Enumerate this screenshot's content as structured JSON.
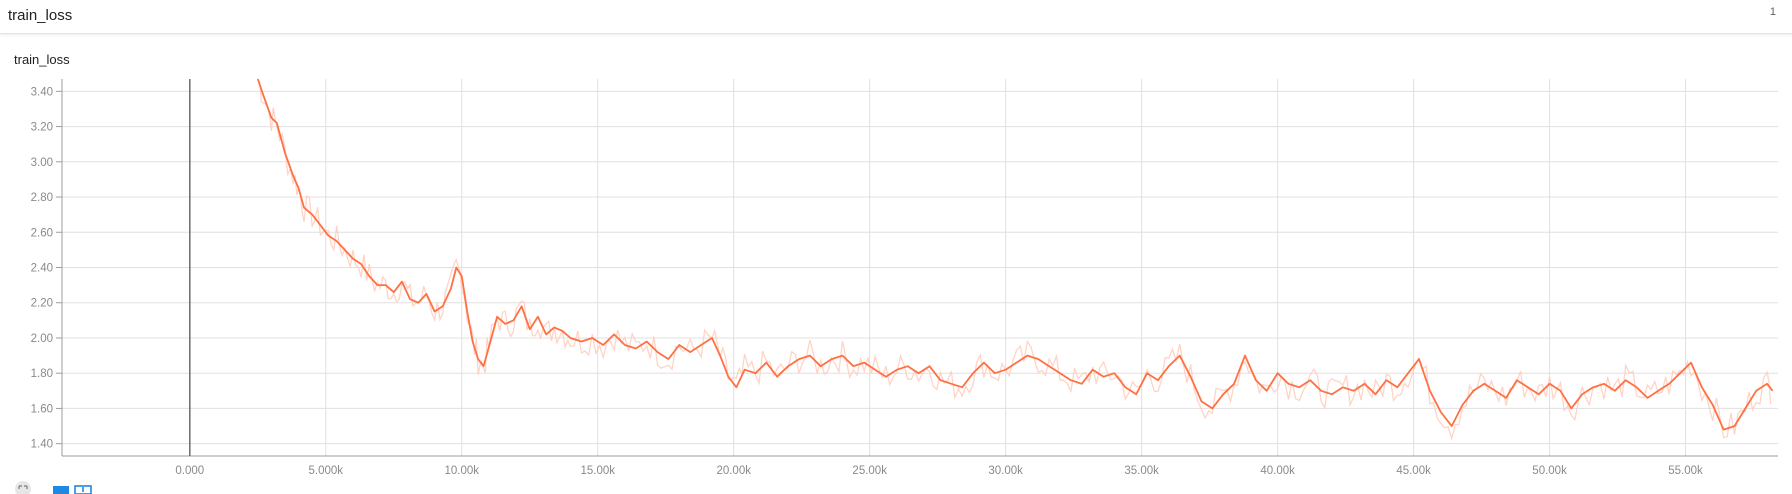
{
  "card": {
    "title": "train_loss",
    "count": "1"
  },
  "chart_data": {
    "type": "line",
    "title": "train_loss",
    "xlabel": "",
    "ylabel": "",
    "xlim": [
      -4700,
      58400
    ],
    "ylim": [
      1.33,
      3.47
    ],
    "grid": true,
    "x_ticks": [
      0,
      5000,
      10000,
      15000,
      20000,
      25000,
      30000,
      35000,
      40000,
      45000,
      50000,
      55000
    ],
    "x_tick_labels": [
      "0.000",
      "5.000k",
      "10.00k",
      "15.00k",
      "20.00k",
      "25.00k",
      "30.00k",
      "35.00k",
      "40.00k",
      "45.00k",
      "50.00k",
      "55.00k"
    ],
    "y_ticks": [
      1.4,
      1.6,
      1.8,
      2.0,
      2.2,
      2.4,
      2.6,
      2.8,
      3.0,
      3.2,
      3.4
    ],
    "y_tick_labels": [
      "1.40",
      "1.60",
      "1.80",
      "2.00",
      "2.20",
      "2.40",
      "2.60",
      "2.80",
      "3.00",
      "3.20",
      "3.40"
    ],
    "colors": {
      "smoothed": "#ff7043",
      "raw": "#ffccbc",
      "grid": "#e0e0e0",
      "axis": "#9e9e9e"
    },
    "series": [
      {
        "x": [
          2500,
          2700,
          3000,
          3200,
          3500,
          3800,
          4000,
          4200,
          4500,
          4800,
          5100,
          5400,
          5700,
          6000,
          6300,
          6600,
          6900,
          7200,
          7500,
          7800,
          8100,
          8400,
          8700,
          9000,
          9300,
          9600,
          9800,
          10000,
          10200,
          10400,
          10600,
          10800,
          11000,
          11300,
          11600,
          11900,
          12200,
          12500,
          12800,
          13100,
          13400,
          13700,
          14000,
          14400,
          14800,
          15200,
          15600,
          16000,
          16400,
          16800,
          17200,
          17600,
          18000,
          18400,
          18800,
          19200,
          19500,
          19800,
          20100,
          20400,
          20800,
          21200,
          21600,
          22000,
          22400,
          22800,
          23200,
          23600,
          24000,
          24400,
          24800,
          25200,
          25600,
          26000,
          26400,
          26800,
          27200,
          27600,
          28000,
          28400,
          28800,
          29200,
          29600,
          30000,
          30400,
          30800,
          31200,
          31600,
          32000,
          32400,
          32800,
          33200,
          33600,
          34000,
          34400,
          34800,
          35200,
          35600,
          36000,
          36400,
          36800,
          37200,
          37600,
          38000,
          38400,
          38800,
          39200,
          39600,
          40000,
          40400,
          40800,
          41200,
          41600,
          42000,
          42400,
          42800,
          43200,
          43600,
          44000,
          44400,
          44800,
          45200,
          45600,
          46000,
          46400,
          46800,
          47200,
          47600,
          48000,
          48400,
          48800,
          49200,
          49600,
          50000,
          50400,
          50800,
          51200,
          51600,
          52000,
          52400,
          52800,
          53200,
          53600,
          54000,
          54400,
          54800,
          55200,
          55600,
          56000,
          56400,
          56800,
          57200,
          57600,
          58000,
          58200
        ],
        "smoothed": [
          3.47,
          3.38,
          3.25,
          3.22,
          3.05,
          2.92,
          2.85,
          2.74,
          2.7,
          2.64,
          2.58,
          2.55,
          2.5,
          2.45,
          2.42,
          2.35,
          2.3,
          2.3,
          2.26,
          2.32,
          2.22,
          2.2,
          2.25,
          2.15,
          2.18,
          2.28,
          2.4,
          2.35,
          2.15,
          1.98,
          1.88,
          1.84,
          1.95,
          2.12,
          2.08,
          2.1,
          2.18,
          2.05,
          2.12,
          2.02,
          2.06,
          2.04,
          2.0,
          1.98,
          2.0,
          1.96,
          2.02,
          1.96,
          1.94,
          1.98,
          1.92,
          1.88,
          1.96,
          1.92,
          1.96,
          2.0,
          1.9,
          1.78,
          1.72,
          1.82,
          1.8,
          1.86,
          1.78,
          1.84,
          1.88,
          1.9,
          1.84,
          1.88,
          1.9,
          1.84,
          1.86,
          1.82,
          1.78,
          1.82,
          1.84,
          1.8,
          1.84,
          1.76,
          1.74,
          1.72,
          1.8,
          1.86,
          1.8,
          1.82,
          1.86,
          1.9,
          1.88,
          1.84,
          1.8,
          1.76,
          1.74,
          1.82,
          1.78,
          1.8,
          1.72,
          1.68,
          1.8,
          1.76,
          1.84,
          1.9,
          1.78,
          1.64,
          1.6,
          1.68,
          1.74,
          1.9,
          1.76,
          1.7,
          1.8,
          1.74,
          1.72,
          1.76,
          1.7,
          1.68,
          1.72,
          1.7,
          1.74,
          1.68,
          1.76,
          1.72,
          1.8,
          1.88,
          1.7,
          1.58,
          1.5,
          1.62,
          1.7,
          1.74,
          1.7,
          1.66,
          1.76,
          1.72,
          1.68,
          1.74,
          1.7,
          1.6,
          1.68,
          1.72,
          1.74,
          1.7,
          1.76,
          1.72,
          1.66,
          1.7,
          1.74,
          1.8,
          1.86,
          1.72,
          1.62,
          1.48,
          1.5,
          1.6,
          1.7,
          1.74,
          1.7,
          1.68,
          1.76,
          1.72,
          1.8,
          1.7
        ]
      }
    ]
  },
  "toolbar": {
    "icons": [
      "fit-domain-icon",
      "toggle-log-scale-icon",
      "download-data-icon"
    ]
  }
}
